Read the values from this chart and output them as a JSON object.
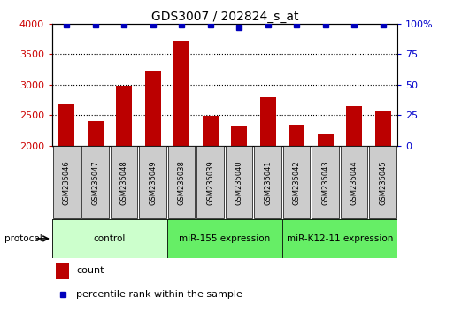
{
  "title": "GDS3007 / 202824_s_at",
  "samples": [
    "GSM235046",
    "GSM235047",
    "GSM235048",
    "GSM235049",
    "GSM235038",
    "GSM235039",
    "GSM235040",
    "GSM235041",
    "GSM235042",
    "GSM235043",
    "GSM235044",
    "GSM235045"
  ],
  "counts": [
    2670,
    2400,
    2985,
    3220,
    3720,
    2480,
    2320,
    2790,
    2340,
    2180,
    2650,
    2560
  ],
  "percentile_ranks": [
    99,
    99,
    99,
    99,
    99,
    99,
    97,
    99,
    99,
    99,
    99,
    99
  ],
  "group_configs": [
    {
      "label": "control",
      "start": 0,
      "end": 3,
      "color": "#ccffcc"
    },
    {
      "label": "miR-155 expression",
      "start": 4,
      "end": 7,
      "color": "#66ee66"
    },
    {
      "label": "miR-K12-11 expression",
      "start": 8,
      "end": 11,
      "color": "#66ee66"
    }
  ],
  "ylim_left": [
    2000,
    4000
  ],
  "ylim_right": [
    0,
    100
  ],
  "yticks_left": [
    2000,
    2500,
    3000,
    3500,
    4000
  ],
  "yticks_right": [
    0,
    25,
    50,
    75,
    100
  ],
  "ytick_labels_right": [
    "0",
    "25",
    "50",
    "75",
    "100%"
  ],
  "bar_color": "#bb0000",
  "dot_color": "#0000bb",
  "bar_width": 0.55,
  "background_color": "#ffffff",
  "left_tick_color": "#cc0000",
  "right_tick_color": "#0000cc",
  "label_box_color": "#cccccc",
  "protocol_arrow_text": "protocol"
}
